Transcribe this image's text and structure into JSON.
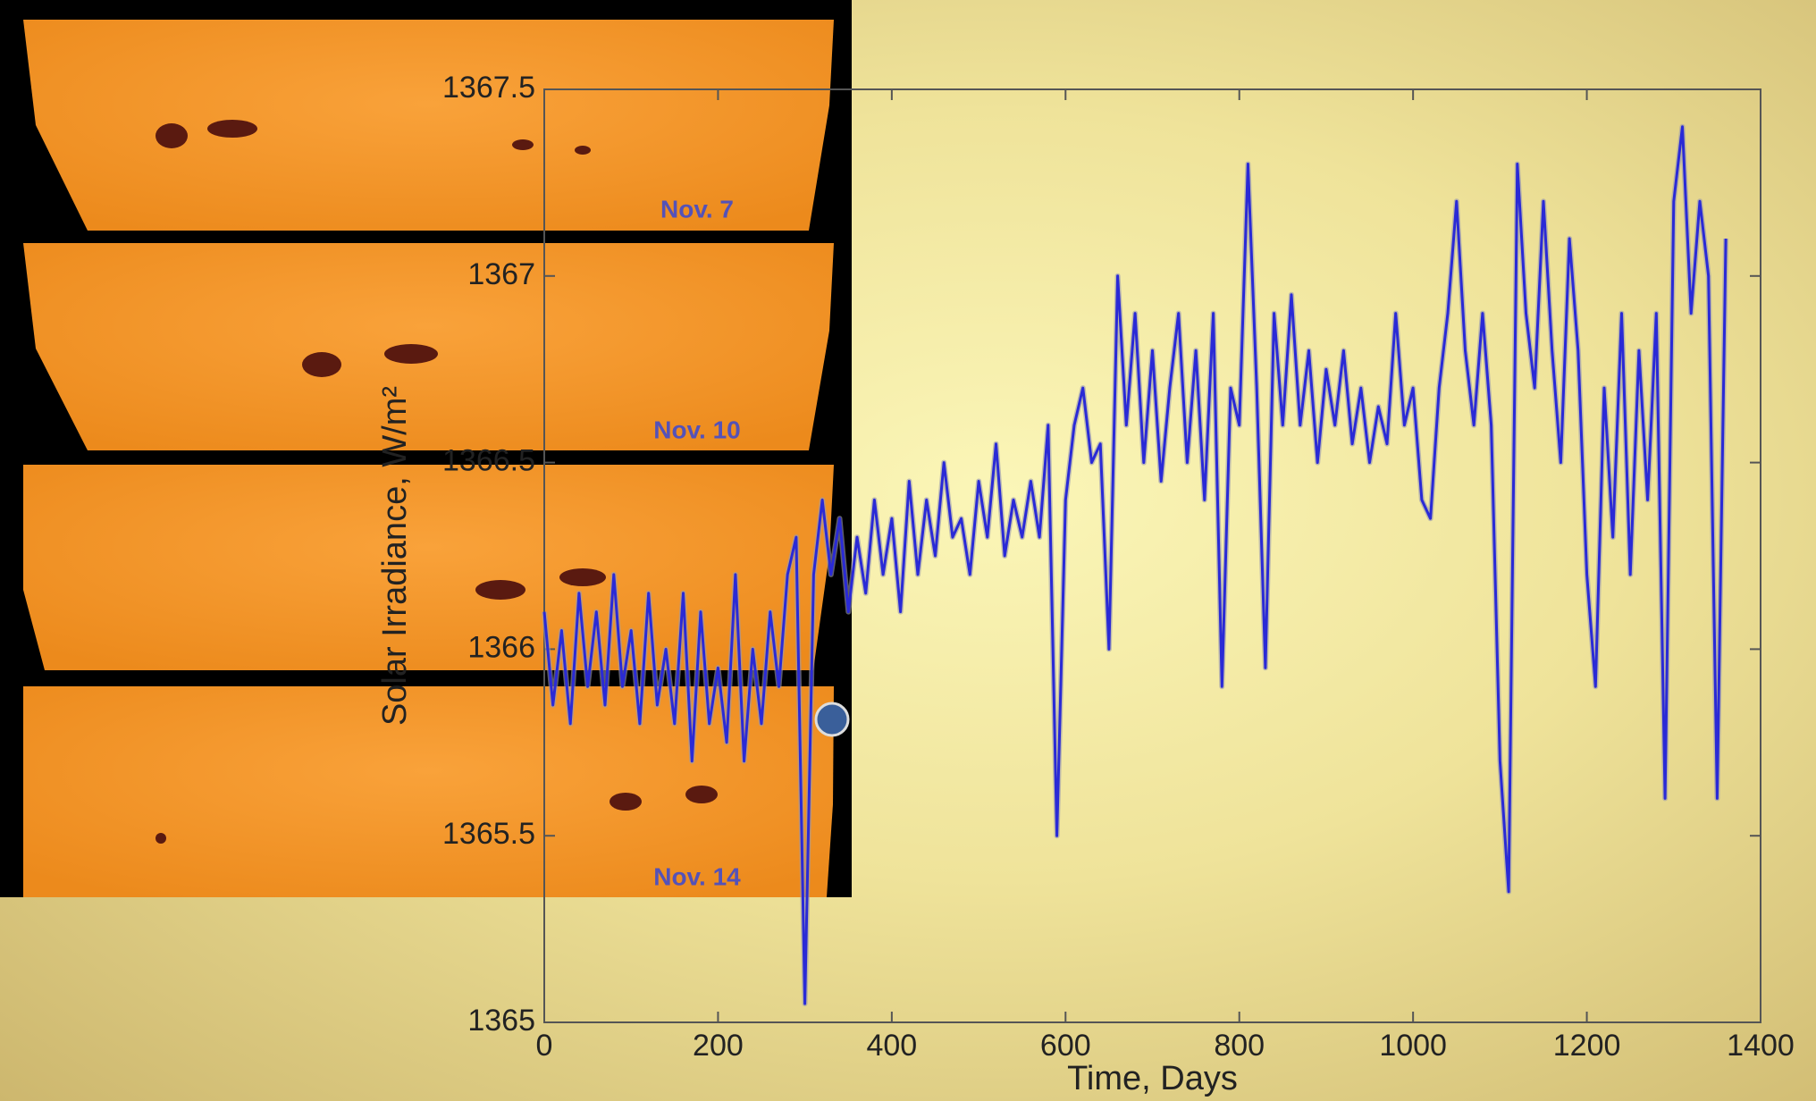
{
  "chart_data": {
    "type": "line",
    "xlabel": "Time, Days",
    "ylabel": "Solar Irradiance, W/m²",
    "color": "#2a2ad6",
    "x": [
      0,
      10,
      20,
      30,
      40,
      50,
      60,
      70,
      80,
      90,
      100,
      110,
      120,
      130,
      140,
      150,
      160,
      170,
      180,
      190,
      200,
      210,
      220,
      230,
      240,
      250,
      260,
      270,
      280,
      290,
      300,
      310,
      320,
      330,
      340,
      350,
      360,
      370,
      380,
      390,
      400,
      410,
      420,
      430,
      440,
      450,
      460,
      470,
      480,
      490,
      500,
      510,
      520,
      530,
      540,
      550,
      560,
      570,
      580,
      590,
      600,
      610,
      620,
      630,
      640,
      650,
      660,
      670,
      680,
      690,
      700,
      710,
      720,
      730,
      740,
      750,
      760,
      770,
      780,
      790,
      800,
      810,
      820,
      830,
      840,
      850,
      860,
      870,
      880,
      890,
      900,
      910,
      920,
      930,
      940,
      950,
      960,
      970,
      980,
      990,
      1000,
      1010,
      1020,
      1030,
      1040,
      1050,
      1060,
      1070,
      1080,
      1090,
      1100,
      1110,
      1120,
      1130,
      1140,
      1150,
      1160,
      1170,
      1180,
      1190,
      1200,
      1210,
      1220,
      1230,
      1240,
      1250,
      1260,
      1270,
      1280,
      1290,
      1300,
      1310,
      1320,
      1330,
      1340,
      1350,
      1360
    ],
    "values": [
      1366.1,
      1365.85,
      1366.05,
      1365.8,
      1366.15,
      1365.9,
      1366.1,
      1365.85,
      1366.2,
      1365.9,
      1366.05,
      1365.8,
      1366.15,
      1365.85,
      1366.0,
      1365.8,
      1366.15,
      1365.7,
      1366.1,
      1365.8,
      1365.95,
      1365.75,
      1366.2,
      1365.7,
      1366.0,
      1365.8,
      1366.1,
      1365.9,
      1366.2,
      1366.3,
      1365.05,
      1366.2,
      1366.4,
      1366.2,
      1366.35,
      1366.1,
      1366.3,
      1366.15,
      1366.4,
      1366.2,
      1366.35,
      1366.1,
      1366.45,
      1366.2,
      1366.4,
      1366.25,
      1366.5,
      1366.3,
      1366.35,
      1366.2,
      1366.45,
      1366.3,
      1366.55,
      1366.25,
      1366.4,
      1366.3,
      1366.45,
      1366.3,
      1366.6,
      1365.5,
      1366.4,
      1366.6,
      1366.7,
      1366.5,
      1366.55,
      1366.0,
      1367.0,
      1366.6,
      1366.9,
      1366.5,
      1366.8,
      1366.45,
      1366.7,
      1366.9,
      1366.5,
      1366.8,
      1366.4,
      1366.9,
      1365.9,
      1366.7,
      1366.6,
      1367.3,
      1366.7,
      1365.95,
      1366.9,
      1366.6,
      1366.95,
      1366.6,
      1366.8,
      1366.5,
      1366.75,
      1366.6,
      1366.8,
      1366.55,
      1366.7,
      1366.5,
      1366.65,
      1366.55,
      1366.9,
      1366.6,
      1366.7,
      1366.4,
      1366.35,
      1366.7,
      1366.9,
      1367.2,
      1366.8,
      1366.6,
      1366.9,
      1366.6,
      1365.7,
      1365.35,
      1367.3,
      1366.9,
      1366.7,
      1367.2,
      1366.8,
      1366.5,
      1367.1,
      1366.8,
      1366.2,
      1365.9,
      1366.7,
      1366.3,
      1366.9,
      1366.2,
      1366.8,
      1366.4,
      1366.9,
      1365.6,
      1367.2,
      1367.4,
      1366.9,
      1367.2,
      1367.0,
      1365.6,
      1367.1
    ],
    "xlim": [
      0,
      1400
    ],
    "xticks": [
      0,
      200,
      400,
      600,
      800,
      1000,
      1200,
      1400
    ],
    "ylim": [
      1365,
      1367.5
    ],
    "yticks": [
      1365,
      1365.5,
      1366,
      1366.5,
      1367,
      1367.5
    ]
  },
  "inset": {
    "labels": [
      "Nov. 7",
      "Nov. 10",
      "Nov. 14"
    ]
  }
}
